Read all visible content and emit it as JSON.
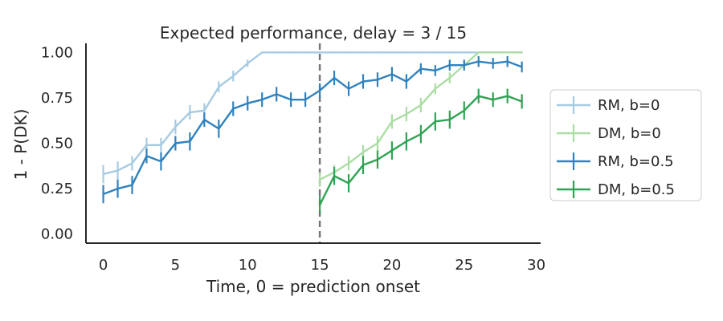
{
  "chart_data": {
    "type": "line",
    "title": "Expected performance, delay = 3 / 15",
    "xlabel": "Time, 0 = prediction onset",
    "ylabel": "1 - P(DK)",
    "xlim": [
      -1.2,
      30.3
    ],
    "ylim": [
      -0.05,
      1.05
    ],
    "xticks": [
      0,
      5,
      10,
      15,
      20,
      25,
      30
    ],
    "xtick_labels": [
      "0",
      "5",
      "10",
      "15",
      "20",
      "25",
      "30"
    ],
    "yticks": [
      0,
      0.25,
      0.5,
      0.75,
      1.0
    ],
    "ytick_labels": [
      "0.00",
      "0.25",
      "0.50",
      "0.75",
      "1.00"
    ],
    "grid": false,
    "legend_position": "outside-right",
    "vline": {
      "x": 15,
      "color": "#777777",
      "style": "dashed"
    },
    "series": [
      {
        "name": "RM, b=0",
        "color": "#a6cbe3",
        "x": [
          0,
          1,
          2,
          3,
          4,
          5,
          6,
          7,
          8,
          9,
          10,
          11,
          12,
          13,
          14,
          15,
          16,
          17,
          18,
          19,
          20,
          21,
          22,
          23,
          24,
          25,
          26,
          27,
          28,
          29
        ],
        "y": [
          0.33,
          0.35,
          0.39,
          0.49,
          0.49,
          0.59,
          0.67,
          0.68,
          0.81,
          0.87,
          0.94,
          1.0,
          1.0,
          1.0,
          1.0,
          1.0,
          1.0,
          1.0,
          1.0,
          1.0,
          1.0,
          1.0,
          1.0,
          1.0,
          1.0,
          1.0,
          1.0,
          1.0,
          1.0,
          1.0
        ],
        "err": [
          0.05,
          0.05,
          0.04,
          0.04,
          0.04,
          0.04,
          0.04,
          0.04,
          0.03,
          0.03,
          0.02,
          0,
          0,
          0,
          0,
          0,
          0,
          0,
          0,
          0,
          0,
          0,
          0,
          0,
          0,
          0,
          0,
          0,
          0,
          0
        ]
      },
      {
        "name": "DM, b=0",
        "color": "#abdda4",
        "x": [
          15,
          16,
          17,
          18,
          19,
          20,
          21,
          22,
          23,
          24,
          25,
          26,
          27,
          28,
          29
        ],
        "y": [
          0.3,
          0.34,
          0.39,
          0.45,
          0.5,
          0.62,
          0.66,
          0.71,
          0.8,
          0.86,
          0.93,
          1.0,
          1.0,
          1.0,
          1.0
        ],
        "err": [
          0.04,
          0.04,
          0.04,
          0.04,
          0.04,
          0.04,
          0.04,
          0.04,
          0.03,
          0.03,
          0.02,
          0,
          0,
          0,
          0
        ]
      },
      {
        "name": "RM, b=0.5",
        "color": "#3182bd",
        "x": [
          0,
          1,
          2,
          3,
          4,
          5,
          6,
          7,
          8,
          9,
          10,
          11,
          12,
          13,
          14,
          15,
          16,
          17,
          18,
          19,
          20,
          21,
          22,
          23,
          24,
          25,
          26,
          27,
          28,
          29
        ],
        "y": [
          0.22,
          0.25,
          0.27,
          0.43,
          0.4,
          0.5,
          0.51,
          0.63,
          0.58,
          0.69,
          0.72,
          0.74,
          0.77,
          0.74,
          0.74,
          0.79,
          0.86,
          0.8,
          0.84,
          0.85,
          0.88,
          0.84,
          0.91,
          0.9,
          0.93,
          0.93,
          0.95,
          0.94,
          0.95,
          0.92
        ],
        "err": [
          0.05,
          0.05,
          0.05,
          0.04,
          0.05,
          0.04,
          0.05,
          0.04,
          0.05,
          0.04,
          0.04,
          0.04,
          0.04,
          0.04,
          0.04,
          0.04,
          0.04,
          0.04,
          0.04,
          0.04,
          0.04,
          0.04,
          0.03,
          0.03,
          0.03,
          0.03,
          0.03,
          0.03,
          0.03,
          0.03
        ]
      },
      {
        "name": "DM, b=0.5",
        "color": "#31a354",
        "x": [
          15,
          16,
          17,
          18,
          19,
          20,
          21,
          22,
          23,
          24,
          25,
          26,
          27,
          28,
          29
        ],
        "y": [
          0.16,
          0.32,
          0.28,
          0.38,
          0.41,
          0.46,
          0.51,
          0.55,
          0.62,
          0.63,
          0.68,
          0.76,
          0.74,
          0.76,
          0.73
        ],
        "err": [
          0.05,
          0.05,
          0.05,
          0.05,
          0.05,
          0.05,
          0.05,
          0.05,
          0.05,
          0.05,
          0.05,
          0.04,
          0.04,
          0.04,
          0.04
        ]
      }
    ]
  }
}
